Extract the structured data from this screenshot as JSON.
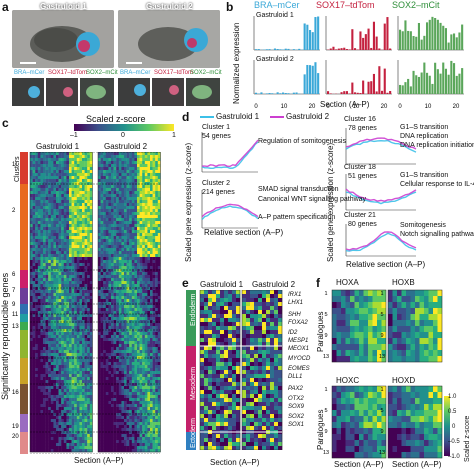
{
  "panel_letters": {
    "a": "a",
    "b": "b",
    "c": "c",
    "d": "d",
    "e": "e",
    "f": "f"
  },
  "panel_a": {
    "gastruloid1": "Gastruloid 1",
    "gastruloid2": "Gastruloid 2",
    "channels": [
      "BRA–mCer",
      "SOX17–tdTom",
      "SOX2–mCit"
    ]
  },
  "panel_b": {
    "ylabel": "Normalized expression",
    "xlabel": "Section (A–P)",
    "row_labels": [
      "Gastruloid 1",
      "Gastruloid 2"
    ],
    "colors": {
      "BRA–mCer": "#3aa8d8",
      "SOX17–tdTom": "#c4213f",
      "SOX2–mCit": "#5aa65a"
    },
    "x_ticks": [
      "0",
      "10",
      "20"
    ]
  },
  "panel_c": {
    "colorbar_title": "Scaled z-score",
    "colorbar_ticks": [
      "–1",
      "0",
      "1"
    ],
    "col_titles": [
      "Gastruloid 1",
      "Gastruloid 2"
    ],
    "clusters_label": "Clusters",
    "ylabel": "Significantly reproducible genes",
    "xlabel": "Section (A–P)",
    "cluster_numbers": [
      "1",
      "2",
      "6",
      "7",
      "9",
      "11",
      "13",
      "16",
      "19",
      "20"
    ],
    "cluster_colors": [
      "#d83b2e",
      "#e86a1f",
      "#cc1e6a",
      "#6c3c99",
      "#2f6fb0",
      "#1f9ea3",
      "#3daa4f",
      "#8fb52f",
      "#c9a227",
      "#7a5230",
      "#9a6bc0",
      "#e08a8a"
    ]
  },
  "panel_d": {
    "legend": [
      "Gastruloid 1",
      "Gastruloid 2"
    ],
    "ylabel": "Scaled gene expression (z-score)",
    "xlabel": "Relative section (A–P)",
    "clusters": [
      {
        "name": "Cluster 1",
        "genes": "54 genes",
        "terms": [
          "Regulation of somitogenesis"
        ]
      },
      {
        "name": "Cluster 2",
        "genes": "214 genes",
        "terms": [
          "SMAD signal transduction",
          "Canonical WNT signalling pathway",
          "A–P pattern specification"
        ]
      },
      {
        "name": "Cluster 16",
        "genes": "78 genes",
        "terms": [
          "G1–S transition",
          "DNA replication",
          "DNA replication initiation"
        ]
      },
      {
        "name": "Cluster 18",
        "genes": "51 genes",
        "terms": [
          "G1–S transition",
          "Cellular response to IL-4"
        ]
      },
      {
        "name": "Cluster 21",
        "genes": "80 genes",
        "terms": [
          "Somitogenesis",
          "Notch signalling pathway"
        ]
      }
    ]
  },
  "panel_e": {
    "col_titles": [
      "Gastruloid 1",
      "Gastruloid 2"
    ],
    "groups": [
      "Endoderm",
      "Mesoderm",
      "Ectoderm"
    ],
    "genes": [
      "IRX1",
      "LHX1",
      "SHH",
      "FOXA2",
      "ID2",
      "MESP1",
      "MEOX1",
      "MYOCD",
      "EOMES",
      "DLL1",
      "PAX2",
      "OTX2",
      "SOX9",
      "SOX2",
      "SOX1"
    ],
    "xlabel": "Section (A–P)"
  },
  "panel_f": {
    "groups": [
      "HOXA",
      "HOXB",
      "HOXC",
      "HOXD"
    ],
    "ylabel": "Paralogues",
    "xlabel": "Section (A–P)",
    "colorbar_title": "Scaled z-score",
    "colorbar_ticks": [
      "1.0",
      "0.5",
      "0",
      "–0.5",
      "–1.0"
    ]
  }
}
